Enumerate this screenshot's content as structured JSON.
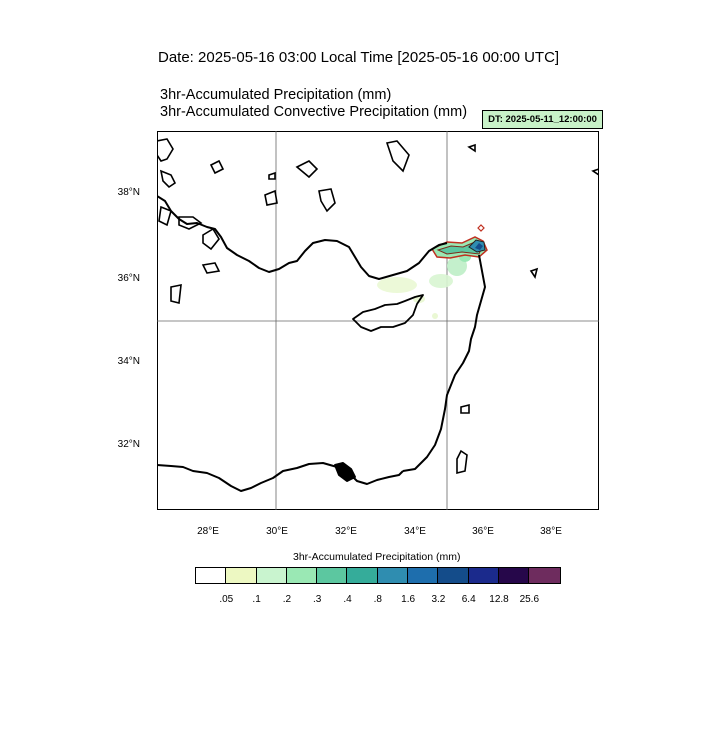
{
  "header": {
    "title": "Date: 2025-05-16  03:00 Local Time [2025-05-16  00:00 UTC]",
    "subtitle1": "3hr-Accumulated Precipitation   (mm)",
    "subtitle2": "3hr-Accumulated Convective Precipitation   (mm)",
    "dt_badge": "DT: 2025-05-11_12:00:00"
  },
  "map": {
    "lat_labels": [
      "38°N",
      "36°N",
      "34°N",
      "32°N"
    ],
    "lon_labels": [
      "28°E",
      "30°E",
      "32°E",
      "34°E",
      "36°E",
      "38°E"
    ],
    "lon_range": [
      26.7,
      39.4
    ],
    "lat_range": [
      30.4,
      39.4
    ],
    "land_color": "#ffffff",
    "coast_color": "#000000"
  },
  "colorbar": {
    "title": "3hr-Accumulated Precipitation  (mm)",
    "colors": [
      "#ffffff",
      "#edf8c2",
      "#c9f4cf",
      "#9ae8b4",
      "#5cc7a0",
      "#35ac9a",
      "#2f8db0",
      "#1e6ead",
      "#144c8a",
      "#1b2a8c",
      "#26074a",
      "#6e2c5e"
    ],
    "labels": [
      ".05",
      ".1",
      ".2",
      ".3",
      ".4",
      ".8",
      "1.6",
      "3.2",
      "6.4",
      "12.8",
      "25.6"
    ]
  }
}
